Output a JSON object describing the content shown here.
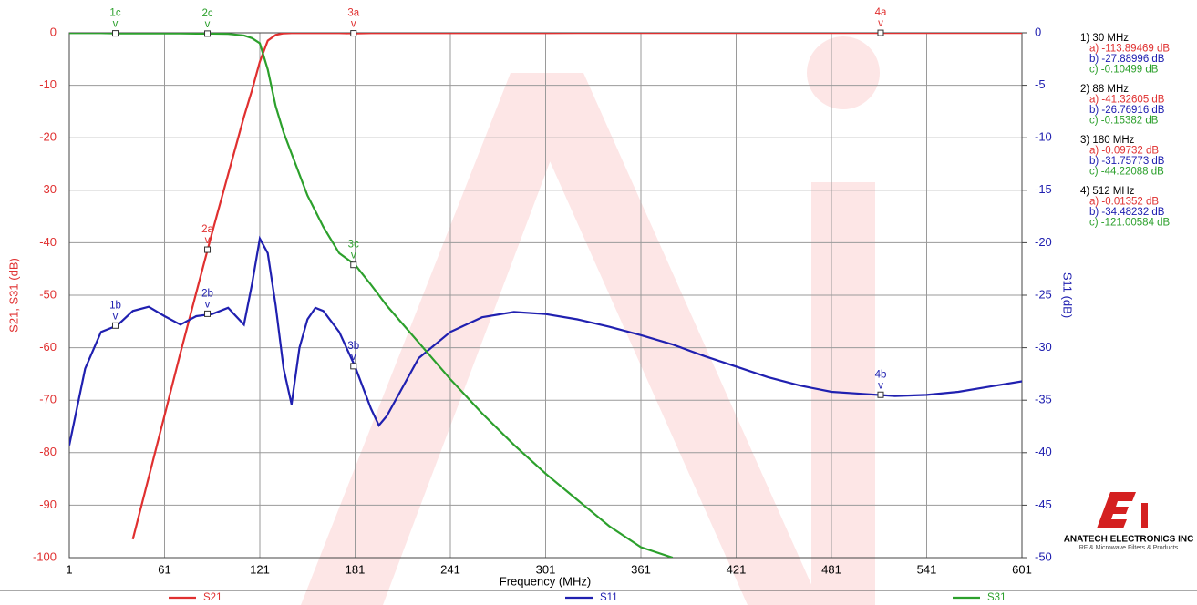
{
  "chart_data": {
    "type": "line",
    "x_label": "Frequency (MHz)",
    "y_label": "S21, S31 (dB)",
    "y2_label": "S11 (dB)",
    "xlim": [
      1,
      601
    ],
    "xticks": [
      1,
      61,
      121,
      181,
      241,
      301,
      361,
      421,
      481,
      541,
      601
    ],
    "ylim": [
      -100,
      0
    ],
    "yticks": [
      -100,
      -90,
      -80,
      -70,
      -60,
      -50,
      -40,
      -30,
      -20,
      -10,
      0
    ],
    "y2lim": [
      -50,
      0
    ],
    "y2ticks": [
      -50,
      -45,
      -40,
      -35,
      -30,
      -25,
      -20,
      -15,
      -10,
      -5,
      0
    ],
    "grid": true,
    "x": [
      1,
      11,
      21,
      31,
      41,
      51,
      61,
      71,
      81,
      91,
      101,
      111,
      116,
      121,
      126,
      131,
      136,
      141,
      146,
      151,
      156,
      161,
      171,
      181,
      191,
      196,
      201,
      221,
      241,
      261,
      281,
      301,
      321,
      341,
      361,
      381,
      401,
      421,
      441,
      461,
      481,
      501,
      521,
      541,
      561,
      581,
      601
    ],
    "series": [
      {
        "name": "S21",
        "color": "#e03030",
        "axis": "y",
        "values": [
          null,
          null,
          null,
          null,
          -96.5,
          -84.7,
          -72.9,
          -61,
          -49.5,
          -38,
          -27,
          -16,
          -11,
          -5.5,
          -1.5,
          -0.4,
          -0.1,
          -0.05,
          -0.05,
          -0.05,
          -0.05,
          -0.05,
          -0.05,
          -0.1,
          -0.05,
          -0.05,
          -0.05,
          -0.05,
          -0.05,
          -0.05,
          -0.05,
          -0.05,
          -0.03,
          -0.03,
          -0.03,
          -0.03,
          -0.02,
          -0.02,
          -0.02,
          -0.02,
          -0.01,
          -0.01,
          -0.01,
          -0.01,
          -0.01,
          -0.01,
          -0.01
        ]
      },
      {
        "name": "S11",
        "color": "#2020b0",
        "axis": "y2",
        "values": [
          -39.3,
          -32,
          -28.5,
          -27.9,
          -26.5,
          -26.1,
          -27,
          -27.8,
          -27,
          -26.8,
          -26.2,
          -27.8,
          -24,
          -19.6,
          -21,
          -26,
          -32,
          -35.4,
          -30,
          -27.3,
          -26.2,
          -26.5,
          -28.5,
          -31.8,
          -35.8,
          -37.4,
          -36.5,
          -31,
          -28.5,
          -27.1,
          -26.6,
          -26.8,
          -27.3,
          -28,
          -28.8,
          -29.7,
          -30.8,
          -31.8,
          -32.8,
          -33.6,
          -34.2,
          -34.4,
          -34.6,
          -34.5,
          -34.2,
          -33.7,
          -33.2
        ]
      },
      {
        "name": "S31",
        "color": "#2ca02c",
        "axis": "y",
        "values": [
          -0.05,
          -0.05,
          -0.05,
          -0.1,
          -0.1,
          -0.1,
          -0.1,
          -0.1,
          -0.15,
          -0.15,
          -0.2,
          -0.5,
          -1,
          -2,
          -7,
          -14,
          -19,
          -23,
          -27,
          -31,
          -34,
          -37,
          -42,
          -44.2,
          -48,
          -50,
          -52,
          -59,
          -66,
          -72.5,
          -78.5,
          -84,
          -89,
          -94,
          -98,
          -100,
          null,
          null,
          null,
          null,
          null,
          null,
          null,
          null,
          null,
          null,
          null
        ]
      }
    ],
    "marker_pointer": "v",
    "markers": [
      {
        "label": "1b",
        "x": 30,
        "series": 1,
        "value": -27.88996
      },
      {
        "label": "1c",
        "x": 30,
        "series": 2,
        "value": -0.10499
      },
      {
        "label": "2a",
        "x": 88,
        "series": 0,
        "value": -41.32605
      },
      {
        "label": "2b",
        "x": 88,
        "series": 1,
        "value": -26.76916
      },
      {
        "label": "2c",
        "x": 88,
        "series": 2,
        "value": -0.15382
      },
      {
        "label": "3a",
        "x": 180,
        "series": 0,
        "value": -0.09732
      },
      {
        "label": "3b",
        "x": 180,
        "series": 1,
        "value": -31.75773
      },
      {
        "label": "3c",
        "x": 180,
        "series": 2,
        "value": -44.22088
      },
      {
        "label": "4a",
        "x": 512,
        "series": 0,
        "value": -0.01352
      },
      {
        "label": "4b",
        "x": 512,
        "series": 1,
        "value": -34.48232
      }
    ],
    "readouts": [
      {
        "title": "1) 30 MHz",
        "lines": [
          "a) -113.89469 dB",
          "b) -27.88996 dB",
          "c) -0.10499 dB"
        ]
      },
      {
        "title": "2) 88 MHz",
        "lines": [
          "a) -41.32605 dB",
          "b) -26.76916 dB",
          "c) -0.15382 dB"
        ]
      },
      {
        "title": "3) 180 MHz",
        "lines": [
          "a) -0.09732 dB",
          "b) -31.75773 dB",
          "c) -44.22088 dB"
        ]
      },
      {
        "title": "4) 512 MHz",
        "lines": [
          "a) -0.01352 dB",
          "b) -34.48232 dB",
          "c) -121.00584 dB"
        ]
      }
    ],
    "logo": {
      "name": "ANATECH ELECTRONICS INC",
      "tagline": "RF & Microwave Filters & Products"
    }
  }
}
